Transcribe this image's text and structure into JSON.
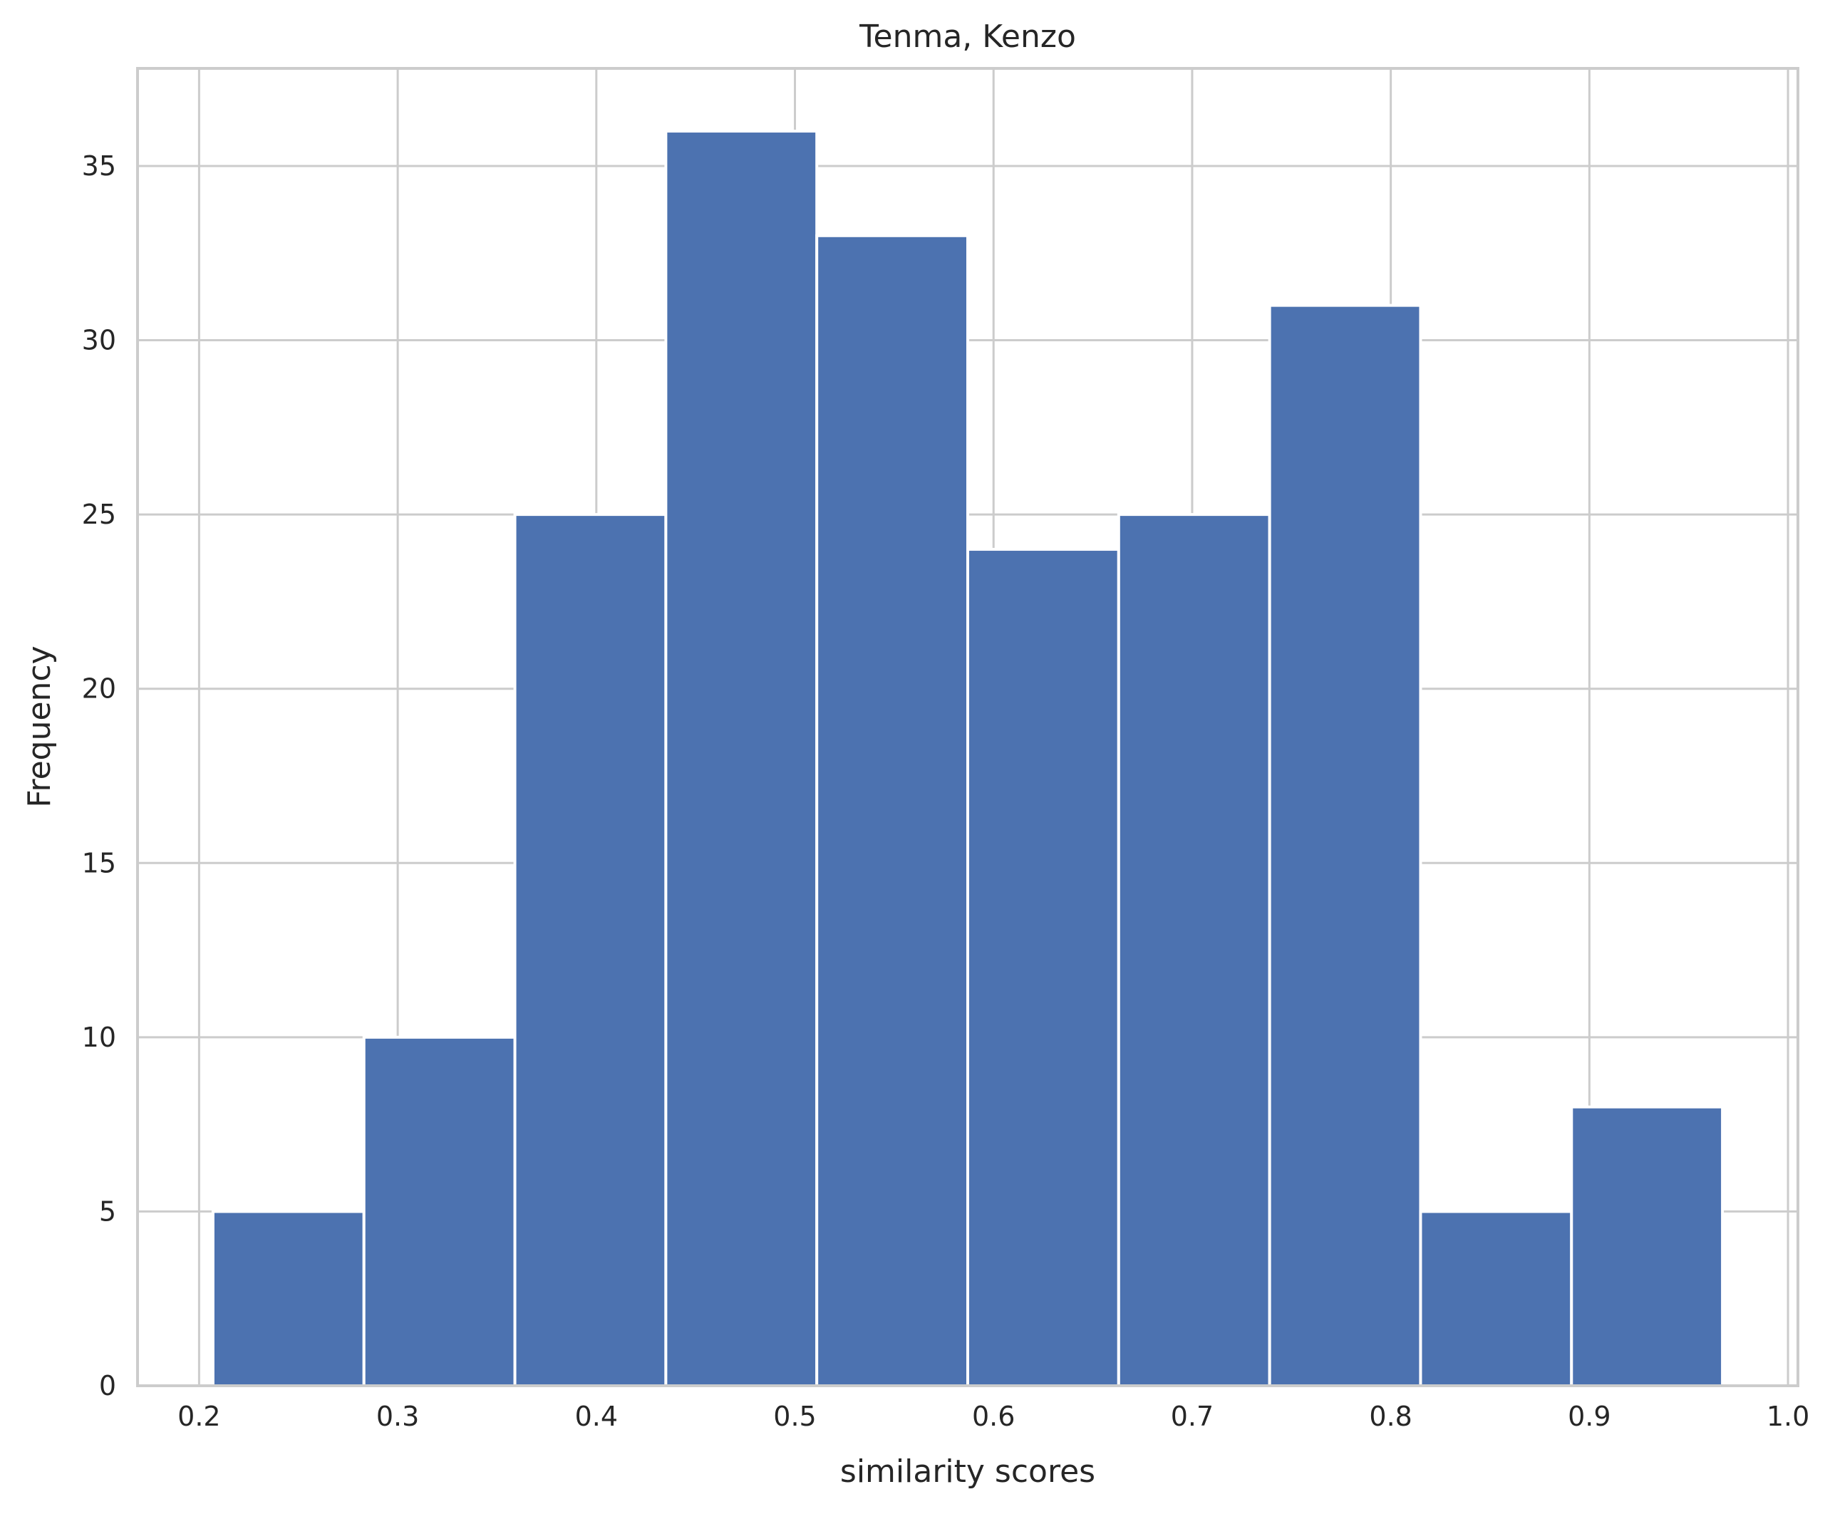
{
  "chart_data": {
    "type": "bar",
    "title": "Tenma, Kenzo",
    "xlabel": "similarity scores",
    "ylabel": "Frequency",
    "bins": [
      {
        "x0": 0.207,
        "x1": 0.283,
        "count": 5
      },
      {
        "x0": 0.283,
        "x1": 0.359,
        "count": 10
      },
      {
        "x0": 0.359,
        "x1": 0.435,
        "count": 25
      },
      {
        "x0": 0.435,
        "x1": 0.511,
        "count": 36
      },
      {
        "x0": 0.511,
        "x1": 0.587,
        "count": 33
      },
      {
        "x0": 0.587,
        "x1": 0.663,
        "count": 24
      },
      {
        "x0": 0.663,
        "x1": 0.739,
        "count": 25
      },
      {
        "x0": 0.739,
        "x1": 0.815,
        "count": 31
      },
      {
        "x0": 0.815,
        "x1": 0.891,
        "count": 5
      },
      {
        "x0": 0.891,
        "x1": 0.967,
        "count": 8
      }
    ],
    "xlim": [
      0.169,
      1.005
    ],
    "ylim": [
      0,
      37.8
    ],
    "xticks": [
      "0.2",
      "0.3",
      "0.4",
      "0.5",
      "0.6",
      "0.7",
      "0.8",
      "0.9",
      "1.0"
    ],
    "yticks": [
      "0",
      "5",
      "10",
      "15",
      "20",
      "25",
      "30",
      "35"
    ],
    "grid": true,
    "bar_color": "#4c72b0",
    "grid_color": "#cccccc",
    "edge_color": "#ffffff"
  }
}
